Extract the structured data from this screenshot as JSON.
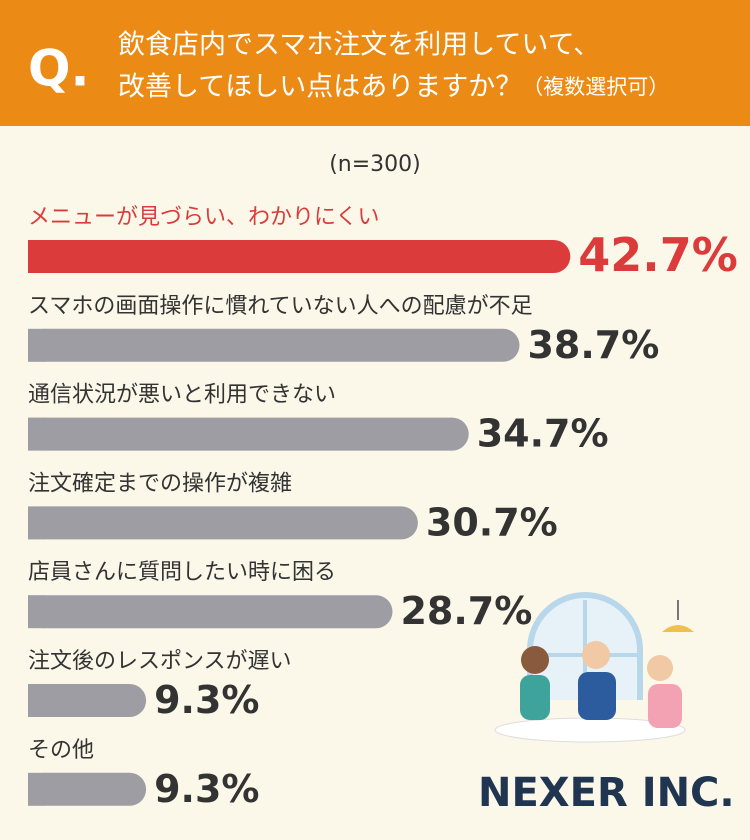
{
  "chart_data": {
    "type": "bar",
    "orientation": "horizontal",
    "question_mark": "Q.",
    "title": [
      "飲食店内でスマホ注文を利用していて、",
      "改善してほしい点はありますか？"
    ],
    "title_note": "（複数選択可）",
    "note": "(n=300)",
    "categories": [
      "メニューが見づらい、わかりにくい",
      "スマホの画面操作に慣れていない人への配慮が不足",
      "通信状況が悪いと利用できない",
      "注文確定までの操作が複雑",
      "店員さんに質問したい時に困る",
      "注文後のレスポンスが遅い",
      "その他"
    ],
    "values": [
      42.7,
      38.7,
      34.7,
      30.7,
      28.7,
      9.3,
      9.3
    ],
    "value_labels": [
      "42.7%",
      "38.7%",
      "34.7%",
      "30.7%",
      "28.7%",
      "9.3%",
      "9.3%"
    ],
    "colors": [
      "#dc3b3b",
      "#9d9da3",
      "#9d9da3",
      "#9d9da3",
      "#9d9da3",
      "#9d9da3",
      "#9d9da3"
    ],
    "brand": "NEXER INC."
  }
}
